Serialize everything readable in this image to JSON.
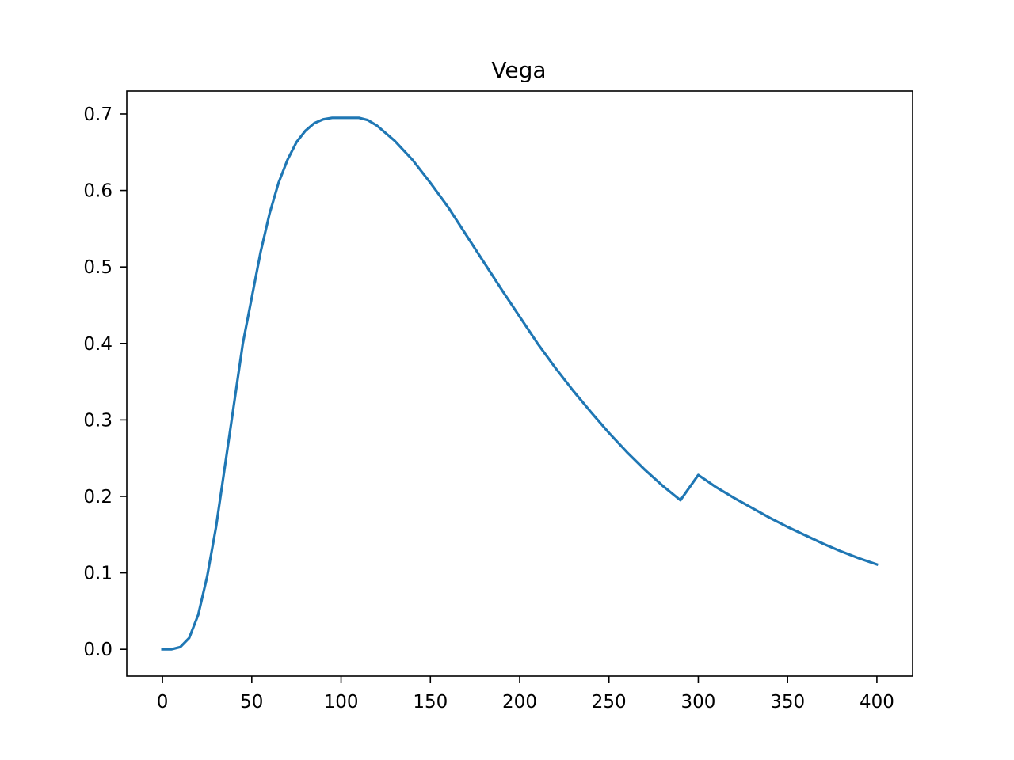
{
  "chart_data": {
    "type": "line",
    "title": "Vega",
    "xlabel": "",
    "ylabel": "",
    "xlim": [
      -20,
      420
    ],
    "ylim": [
      -0.035,
      0.73
    ],
    "xticks": [
      0,
      50,
      100,
      150,
      200,
      250,
      300,
      350,
      400
    ],
    "yticks": [
      0.0,
      0.1,
      0.2,
      0.3,
      0.4,
      0.5,
      0.6,
      0.7
    ],
    "xtick_labels": [
      "0",
      "50",
      "100",
      "150",
      "200",
      "250",
      "300",
      "350",
      "400"
    ],
    "ytick_labels": [
      "0.0",
      "0.1",
      "0.2",
      "0.3",
      "0.4",
      "0.5",
      "0.6",
      "0.7"
    ],
    "grid": false,
    "series": [
      {
        "color": "#1f77b4",
        "x": [
          0,
          5,
          10,
          15,
          20,
          25,
          30,
          35,
          40,
          45,
          50,
          55,
          60,
          65,
          70,
          75,
          80,
          85,
          90,
          95,
          100,
          105,
          110,
          115,
          120,
          130,
          140,
          150,
          160,
          170,
          180,
          190,
          200,
          210,
          220,
          230,
          240,
          250,
          260,
          270,
          280,
          290,
          300,
          310,
          320,
          330,
          340,
          350,
          360,
          370,
          380,
          390,
          400
        ],
        "y": [
          0.0,
          0.0,
          0.003,
          0.015,
          0.045,
          0.095,
          0.16,
          0.24,
          0.32,
          0.4,
          0.46,
          0.52,
          0.57,
          0.61,
          0.64,
          0.663,
          0.678,
          0.688,
          0.693,
          0.695,
          0.695,
          0.695,
          0.695,
          0.692,
          0.685,
          0.665,
          0.64,
          0.61,
          0.578,
          0.542,
          0.506,
          0.47,
          0.435,
          0.4,
          0.368,
          0.338,
          0.31,
          0.283,
          0.258,
          0.235,
          0.214,
          0.195,
          0.228,
          0.212,
          0.198,
          0.185,
          0.172,
          0.16,
          0.149,
          0.138,
          0.128,
          0.119,
          0.111
        ]
      }
    ]
  }
}
